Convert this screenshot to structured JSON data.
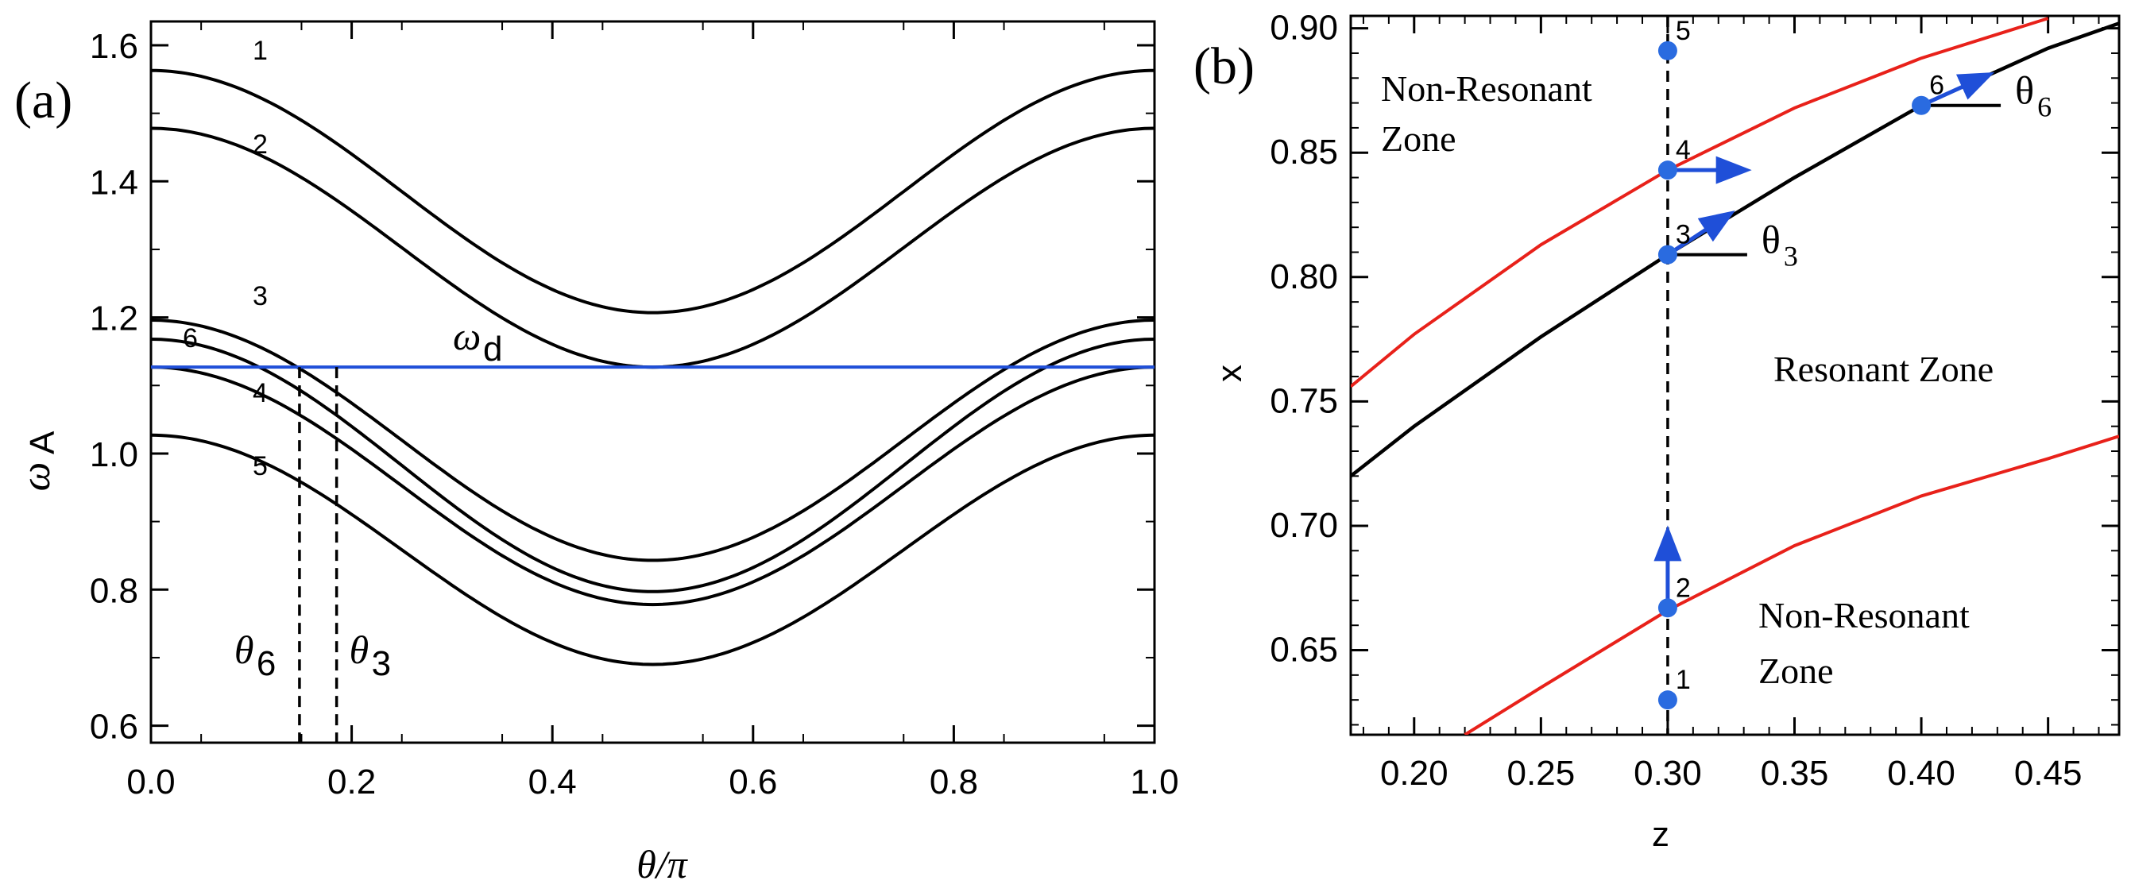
{
  "chart_data": [
    {
      "type": "line",
      "panel_label": "(a)",
      "xlabel": "θ/π",
      "ylabel_main": "ω",
      "ylabel_sub": "A",
      "xlim": [
        0.0,
        1.0
      ],
      "ylim": [
        0.575,
        1.635
      ],
      "xticks": [
        "0.0",
        "0.2",
        "0.4",
        "0.6",
        "0.8",
        "1.0"
      ],
      "yticks": [
        "0.6",
        "0.8",
        "1.0",
        "1.2",
        "1.4",
        "1.6"
      ],
      "series": [
        {
          "name": "1",
          "edge": 1.563,
          "center": 1.207
        },
        {
          "name": "2",
          "edge": 1.478,
          "center": 1.127
        },
        {
          "name": "3",
          "edge": 1.196,
          "center": 0.843
        },
        {
          "name": "6",
          "edge": 1.168,
          "center": 0.797
        },
        {
          "name": "4",
          "edge": 1.127,
          "center": 0.778
        },
        {
          "name": "5",
          "edge": 1.027,
          "center": 0.69
        }
      ],
      "omega_d": {
        "value": 1.127,
        "label_main": "ω",
        "label_sub": "d"
      },
      "vlines": [
        {
          "x": 0.148,
          "label_main": "θ",
          "label_sub": "6"
        },
        {
          "x": 0.185,
          "label_main": "θ",
          "label_sub": "3"
        }
      ],
      "colors": {
        "curves": "#000000",
        "omega_d": "#1f4fd8"
      }
    },
    {
      "type": "line",
      "panel_label": "(b)",
      "xlabel": "z",
      "ylabel": "x",
      "xlim": [
        0.175,
        0.478
      ],
      "ylim": [
        0.616,
        0.905
      ],
      "xticks": [
        "0.20",
        "0.25",
        "0.30",
        "0.35",
        "0.40",
        "0.45"
      ],
      "yticks": [
        "0.65",
        "0.70",
        "0.75",
        "0.80",
        "0.85",
        "0.90"
      ],
      "black_curve": {
        "x": [
          0.175,
          0.2,
          0.25,
          0.3,
          0.35,
          0.4,
          0.45,
          0.478
        ],
        "y": [
          0.72,
          0.74,
          0.776,
          0.809,
          0.84,
          0.869,
          0.892,
          0.902
        ]
      },
      "red_upper": {
        "x": [
          0.175,
          0.2,
          0.25,
          0.3,
          0.35,
          0.4,
          0.45
        ],
        "y": [
          0.756,
          0.777,
          0.813,
          0.843,
          0.868,
          0.888,
          0.904
        ]
      },
      "red_lower": {
        "x": [
          0.22,
          0.25,
          0.3,
          0.35,
          0.4,
          0.45,
          0.478
        ],
        "y": [
          0.616,
          0.635,
          0.666,
          0.692,
          0.712,
          0.727,
          0.736
        ]
      },
      "vline_z": 0.3,
      "points": [
        {
          "name": "1",
          "z": 0.3,
          "x": 0.63
        },
        {
          "name": "2",
          "z": 0.3,
          "x": 0.667
        },
        {
          "name": "3",
          "z": 0.3,
          "x": 0.809
        },
        {
          "name": "4",
          "z": 0.3,
          "x": 0.843
        },
        {
          "name": "5",
          "z": 0.3,
          "x": 0.891
        },
        {
          "name": "6",
          "z": 0.4,
          "x": 0.869
        }
      ],
      "arrows": [
        {
          "from": "2",
          "dz": 0.0,
          "dx": 0.03
        },
        {
          "from": "4",
          "dz": 0.03,
          "dx": 0.0
        },
        {
          "from": "3",
          "dz": 0.024,
          "dx": 0.016
        },
        {
          "from": "6",
          "dz": 0.026,
          "dx": 0.012
        }
      ],
      "angle_labels": [
        {
          "at": "3",
          "label_main": "θ",
          "label_sub": "3"
        },
        {
          "at": "6",
          "label_main": "θ",
          "label_sub": "6"
        }
      ],
      "zones": {
        "upper_line1": "Non-Resonant",
        "upper_line2": "Zone",
        "middle": "Resonant Zone",
        "lower_line1": "Non-Resonant",
        "lower_line2": "Zone"
      },
      "colors": {
        "black": "#000000",
        "red": "#e8211a",
        "blue": "#1f4fd8",
        "point": "#2a6be0"
      }
    }
  ]
}
